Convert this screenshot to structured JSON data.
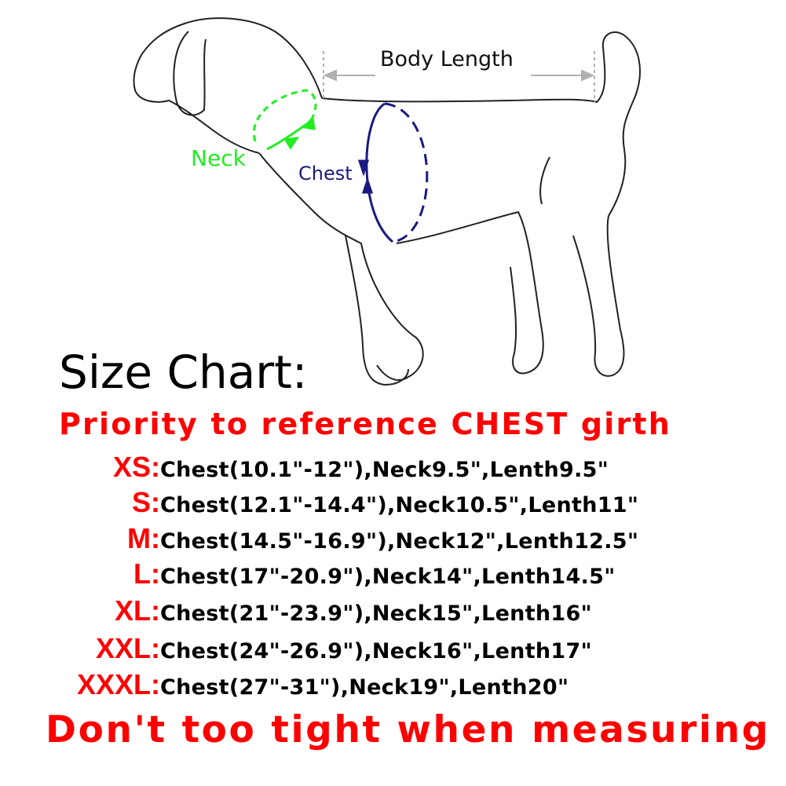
{
  "diagram": {
    "labels": {
      "body_length": "Body Length",
      "neck": "Neck",
      "chest": "Chest"
    },
    "colors": {
      "neck": "#22ee22",
      "chest": "#1a1a80",
      "body_length": "#b0b0b0",
      "outline": "#222222"
    }
  },
  "title": "Size Chart:",
  "priority_note": "Priority to reference CHEST girth",
  "sizes": [
    {
      "size": "XS:",
      "text": "Chest(10.1\"-12\"),Neck9.5\",Lenth9.5\""
    },
    {
      "size": "S:",
      "text": "Chest(12.1\"-14.4\"),Neck10.5\",Lenth11\""
    },
    {
      "size": "M:",
      "text": "Chest(14.5\"-16.9\"),Neck12\",Lenth12.5\""
    },
    {
      "size": "L:",
      "text": "Chest(17\"-20.9\"),Neck14\",Lenth14.5\""
    },
    {
      "size": "XL:",
      "text": "Chest(21\"-23.9\"),Neck15\",Lenth16\""
    },
    {
      "size": "XXL:",
      "text": "Chest(24\"-26.9\"),Neck16\",Lenth17\""
    },
    {
      "size": "XXXL:",
      "text": "Chest(27\"-31\"),Neck19\",Lenth20\""
    }
  ],
  "warning": "Don't too tight when measuring",
  "accent_color": "#ff0000"
}
